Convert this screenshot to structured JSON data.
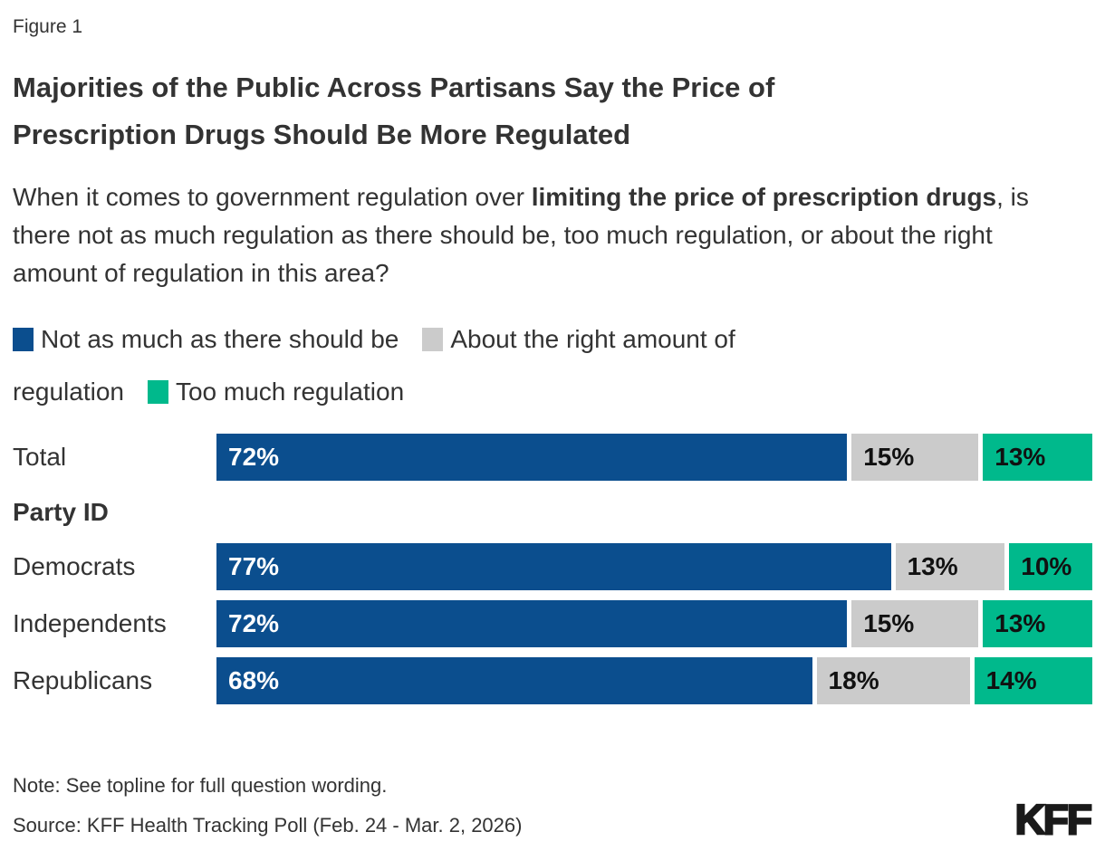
{
  "figure_label": "Figure 1",
  "title": "Majorities of the Public Across Partisans Say the Price of Prescription Drugs Should Be More Regulated",
  "subtitle": {
    "pre": "When it comes to government regulation over ",
    "bold": "limiting the price of prescription drugs",
    "post": ", is there not as much regulation as there should be, too much regulation, or about the right amount of regulation in this area?"
  },
  "colors": {
    "blue": "#0B4E8E",
    "gray": "#CBCBCB",
    "green": "#00B98C",
    "text": "#333333",
    "logo": "#1A1A1A"
  },
  "legend": {
    "line1": [
      {
        "swatch_color": "#0B4E8E",
        "swatch_name": "legend-swatch-blue",
        "text": "Not as much as there should be"
      },
      {
        "swatch_color": "#CBCBCB",
        "swatch_name": "legend-swatch-gray",
        "text": "About the right amount of"
      }
    ],
    "line2": [
      {
        "swatch_color": null,
        "swatch_name": null,
        "text": "regulation"
      },
      {
        "swatch_color": "#00B98C",
        "swatch_name": "legend-swatch-green",
        "text": "Too much regulation"
      }
    ]
  },
  "chart_data": {
    "type": "bar",
    "orientation": "horizontal",
    "stacked": true,
    "xlim": [
      0,
      100
    ],
    "value_suffix": "%",
    "categories": [
      "Total",
      "Democrats",
      "Independents",
      "Republicans"
    ],
    "group_label": "Party ID",
    "section_break_after_index": 0,
    "series": [
      {
        "name": "Not as much as there should be",
        "color": "#0B4E8E",
        "value_label_color": "#ffffff",
        "values": [
          72,
          77,
          72,
          68
        ]
      },
      {
        "name": "About the right amount of regulation",
        "color": "#CBCBCB",
        "value_label_color": "#111111",
        "values": [
          15,
          13,
          15,
          18
        ]
      },
      {
        "name": "Too much regulation",
        "color": "#00B98C",
        "value_label_color": "#111111",
        "values": [
          13,
          10,
          13,
          14
        ]
      }
    ]
  },
  "note": "Note: See topline for full question wording.",
  "source": "Source: KFF Health Tracking Poll (Feb. 24 - Mar. 2, 2026)",
  "logo": "KFF"
}
